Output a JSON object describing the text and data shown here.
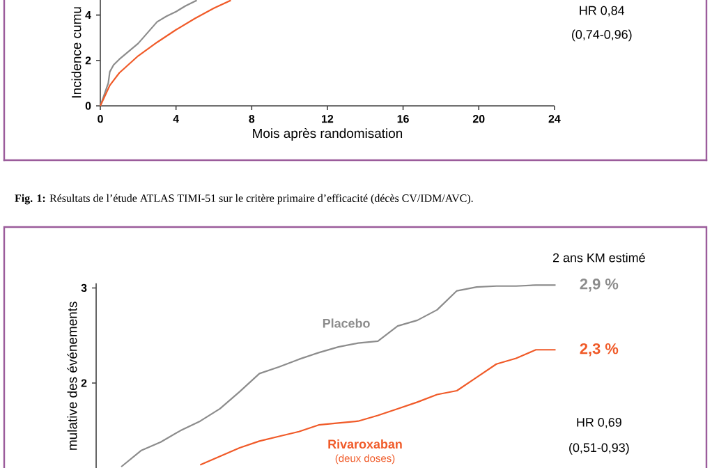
{
  "chart_data": [
    {
      "type": "line",
      "xlabel": "Mois après randomisation",
      "ylabel": "Incidence cumu",
      "xlim": [
        0,
        24
      ],
      "xticks": [
        0,
        4,
        8,
        12,
        16,
        20,
        24
      ],
      "ylim": [
        0,
        4.7
      ],
      "yticks": [
        0,
        2,
        4
      ],
      "series": [
        {
          "color": "#8c8c8c",
          "x": [
            0,
            0.42,
            0.5,
            0.7,
            1,
            2,
            3,
            3.5,
            4,
            4.5,
            5.1
          ],
          "values": [
            0,
            1.0,
            1.5,
            1.8,
            2.05,
            2.75,
            3.7,
            3.95,
            4.15,
            4.4,
            4.65
          ]
        },
        {
          "color": "#f05a28",
          "x": [
            0,
            0.5,
            1,
            2,
            3,
            4,
            5,
            6,
            6.9
          ],
          "values": [
            0,
            0.9,
            1.45,
            2.2,
            2.8,
            3.35,
            3.85,
            4.3,
            4.65
          ]
        }
      ],
      "annotations": [
        "HR 0,84",
        "(0,74-0,96)",
        "**Fig. 1:** Résultats de l’étude ATLAS TIMI-51 sur le critère primaire d’efficacité (décès CV/IDM/AVC)."
      ]
    },
    {
      "type": "line",
      "ylabel": "mulative des événements",
      "categories": [
        null,
        null,
        null,
        null,
        null,
        null,
        null,
        null,
        null,
        null,
        null,
        null,
        null,
        null,
        null,
        null,
        null,
        null,
        null,
        null,
        null,
        null,
        null
      ],
      "tick_labels": "y",
      "ylim": [
        1.1,
        3.05
      ],
      "yticks": [
        2,
        3
      ],
      "series": [
        {
          "name": "Placebo",
          "color": "#8c8c8c",
          "values": [
            1.12,
            1.29,
            1.38,
            1.5,
            1.6,
            1.73,
            1.91,
            2.1,
            2.17,
            2.25,
            2.32,
            2.38,
            2.42,
            2.44,
            2.6,
            2.66,
            2.77,
            2.97,
            3.01,
            3.02,
            3.02,
            3.03,
            3.03
          ]
        },
        {
          "name": "Rivaroxaban",
          "color": "#f05a28",
          "values": [
            null,
            null,
            null,
            null,
            1.14,
            1.23,
            1.32,
            1.39,
            1.44,
            1.49,
            1.56,
            1.58,
            1.6,
            1.66,
            1.73,
            1.8,
            1.88,
            1.92,
            2.06,
            2.2,
            2.26,
            2.35,
            2.35
          ]
        }
      ],
      "annotations": [
        "2 ans KM estimé",
        "2,9 %",
        "2,3 %",
        "(deux doses)",
        "HR 0,69",
        "(0,51-0,93)"
      ]
    }
  ]
}
